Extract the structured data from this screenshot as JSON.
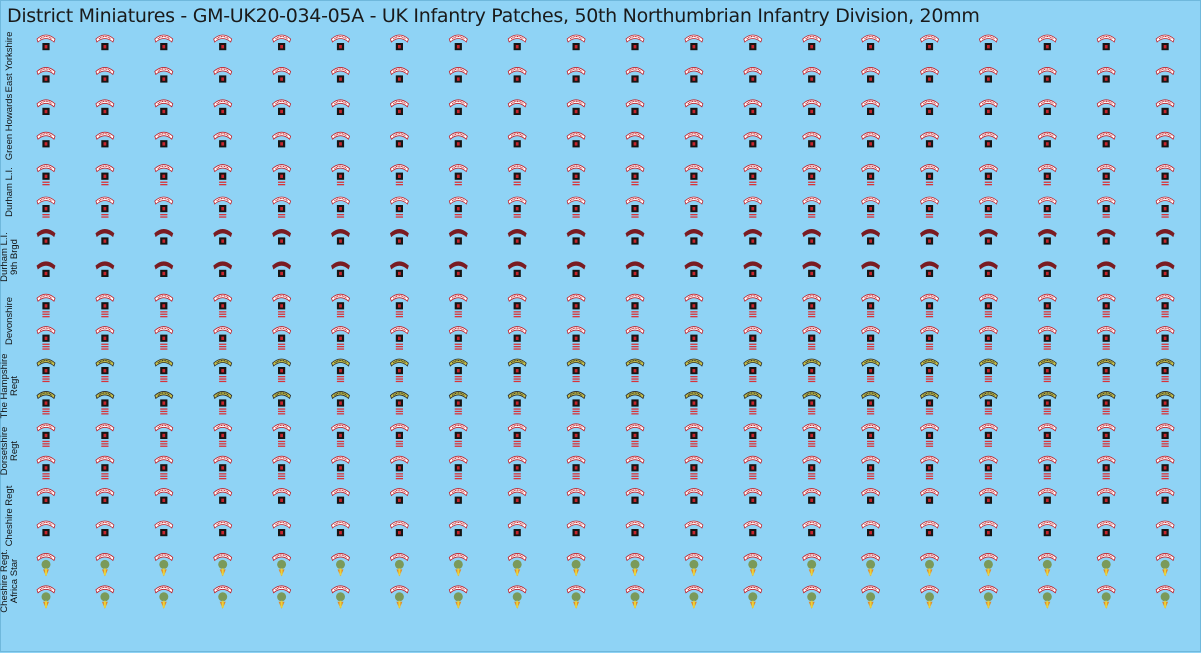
{
  "title": "District Miniatures - GM-UK20-034-05A - UK Infantry Patches, 50th Northumbrian Infantry Division, 20mm",
  "columns": 20,
  "groups": [
    {
      "label_lines": [
        "East Yorkshire"
      ],
      "shoulder_fill": "#ffffff",
      "shoulder_text": "#c0202a",
      "stripes": 0,
      "badge": "square"
    },
    {
      "label_lines": [
        "Green Howards"
      ],
      "shoulder_fill": "#ffffff",
      "shoulder_text": "#c0202a",
      "stripes": 0,
      "badge": "square"
    },
    {
      "label_lines": [
        "Durham L.I."
      ],
      "shoulder_fill": "#ffffff",
      "shoulder_text": "#c0202a",
      "stripes": 2,
      "badge": "square"
    },
    {
      "label_lines": [
        "Durham L.I.",
        "9th Brgd"
      ],
      "shoulder_fill": "#7a1c22",
      "shoulder_text": "#7a1c22",
      "stripes": 0,
      "badge": "square"
    },
    {
      "label_lines": [
        "Devonshire"
      ],
      "shoulder_fill": "#ffffff",
      "shoulder_text": "#c0202a",
      "stripes": 3,
      "badge": "square"
    },
    {
      "label_lines": [
        "The Hampshire",
        "Regt"
      ],
      "shoulder_fill": "#c6c24a",
      "shoulder_text": "#2a2a2a",
      "stripes": 3,
      "badge": "square"
    },
    {
      "label_lines": [
        "Dorsetshire Regt"
      ],
      "shoulder_fill": "#ffffff",
      "shoulder_text": "#c0202a",
      "stripes": 3,
      "badge": "square"
    },
    {
      "label_lines": [
        "Cheshire Regt"
      ],
      "shoulder_fill": "#ffffff",
      "shoulder_text": "#c0202a",
      "stripes": 0,
      "badge": "square"
    },
    {
      "label_lines": [
        "Cheshire Regt.",
        "Africa Star"
      ],
      "shoulder_fill": "#ffffff",
      "shoulder_text": "#c0202a",
      "stripes": 0,
      "badge": "star"
    }
  ],
  "colors": {
    "background": "#8fd3f5",
    "badge_black": "#151515",
    "badge_red": "#c8262e",
    "stripe_red": "#d8343a",
    "star_green": "#7a9a5a",
    "star_orange": "#e08a2a",
    "star_yellow": "#e8d23a"
  }
}
